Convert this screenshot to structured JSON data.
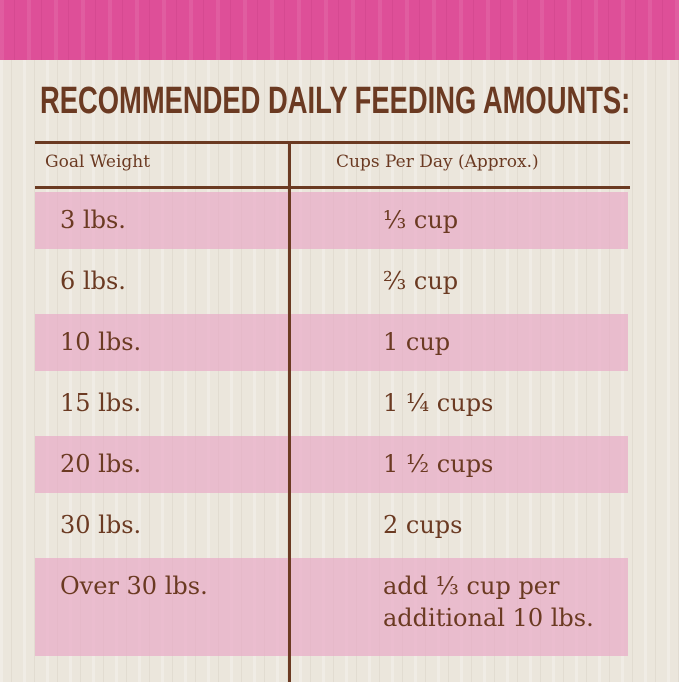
{
  "title": "RECOMMENDED DAILY FEEDING AMOUNTS:",
  "table": {
    "headers": [
      "Goal Weight",
      "Cups Per Day (Approx.)"
    ],
    "rows": [
      {
        "weight": "3 lbs.",
        "cups": "⅓ cup"
      },
      {
        "weight": "6 lbs.",
        "cups": "⅔ cup"
      },
      {
        "weight": "10 lbs.",
        "cups": "1 cup"
      },
      {
        "weight": "15 lbs.",
        "cups": "1 ¼ cups"
      },
      {
        "weight": "20 lbs.",
        "cups": "1 ½ cups"
      },
      {
        "weight": "30 lbs.",
        "cups": "2 cups"
      },
      {
        "weight": "Over 30 lbs.",
        "cups": "add ⅓ cup per",
        "cups2": "additional 10 lbs."
      }
    ]
  },
  "colors": {
    "band": "#de4f98",
    "text": "#6b3a22",
    "row_pink": "#e8aac6",
    "background": "#ebe6dc"
  }
}
